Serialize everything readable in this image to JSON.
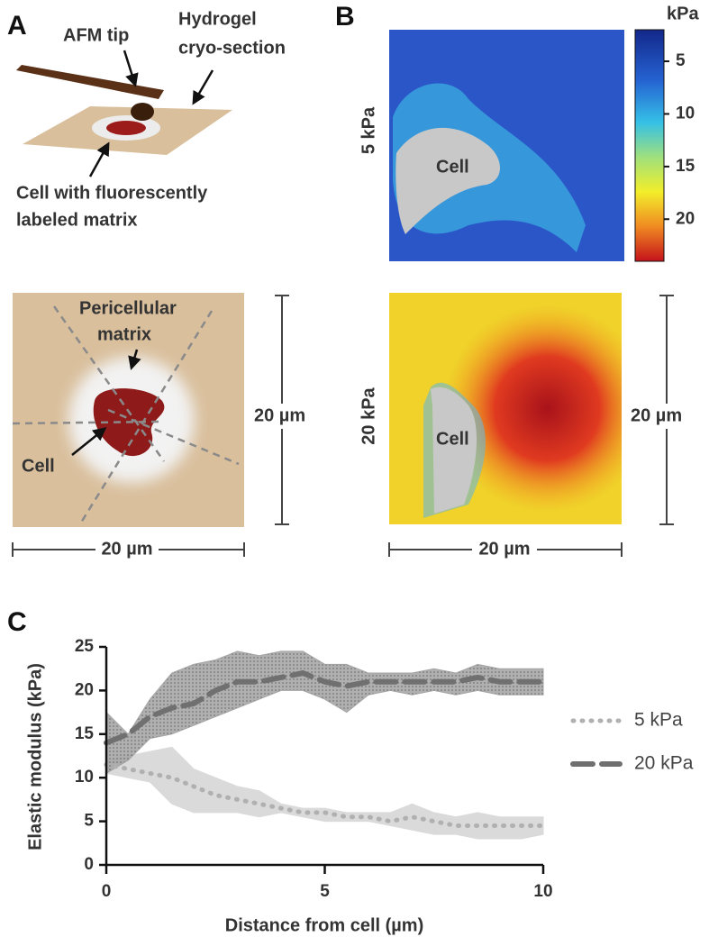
{
  "panel_a": {
    "label": "A",
    "top_annotations": [
      "AFM tip",
      "Hydrogel",
      "cryo-section",
      "Cell with fluorescently",
      "labeled matrix"
    ],
    "diagram_annotations": [
      "Pericellular",
      "matrix",
      "Cell"
    ],
    "scale_x": "20 µm",
    "scale_y": "20 µm"
  },
  "panel_b": {
    "label": "B",
    "row_labels": [
      "5 kPa",
      "20 kPa"
    ],
    "cell_labels": [
      "Cell",
      "Cell"
    ],
    "colorbar": {
      "title": "kPa",
      "clim": [
        2,
        24
      ],
      "ticks": [
        5,
        10,
        15,
        20
      ]
    },
    "scale_x": "20 µm",
    "scale_y": "20 µm"
  },
  "chart_data": {
    "type": "line",
    "panel_label": "C",
    "x_label": "Distance from cell (µm)",
    "y_label": "Elastic modulus (kPa)",
    "x": [
      0,
      0.5,
      1,
      1.5,
      2,
      2.5,
      3,
      3.5,
      4,
      4.5,
      5,
      5.5,
      6,
      6.5,
      7,
      7.5,
      8,
      8.5,
      9,
      9.5,
      10
    ],
    "series": [
      {
        "name": "5 kPa",
        "color": "#b0b0b0",
        "band_color": "#dadada",
        "line_style": "dotted",
        "values": [
          11.5,
          11,
          10.5,
          10,
          9,
          8,
          7.5,
          7,
          6.5,
          6,
          6,
          5.5,
          5.5,
          5,
          5.5,
          5,
          4.5,
          4.5,
          4.5,
          4.5,
          4.5
        ],
        "upper": [
          12,
          12.5,
          13,
          13.5,
          11,
          10,
          9,
          8.5,
          7,
          6.5,
          6.5,
          6,
          6,
          6,
          7,
          6,
          5.5,
          6,
          5.5,
          5.5,
          5.5
        ],
        "lower": [
          10.5,
          10,
          9.5,
          7,
          6,
          6,
          6,
          5.5,
          6,
          5.5,
          5,
          5,
          5,
          4.5,
          4,
          3.5,
          3.5,
          3,
          3,
          3,
          3.5
        ]
      },
      {
        "name": "20 kPa",
        "color": "#707070",
        "band_color": "#9c9c9c",
        "line_style": "dashed",
        "values": [
          14,
          15,
          17,
          18,
          18.5,
          20,
          21,
          21,
          21.5,
          22,
          21,
          20.5,
          21,
          21,
          21,
          21,
          21,
          21.5,
          21,
          21,
          21
        ],
        "upper": [
          17.5,
          15,
          19,
          22,
          23,
          23.5,
          24.5,
          24,
          24.5,
          24.5,
          23,
          23,
          22,
          22,
          22,
          22.5,
          22,
          23,
          22.5,
          22.5,
          22.5
        ],
        "lower": [
          10.5,
          12,
          14.5,
          15,
          16,
          17,
          18,
          19,
          20,
          20,
          19,
          17.5,
          19.5,
          20,
          19.5,
          20,
          19.5,
          20,
          19.5,
          19.5,
          19.5
        ]
      }
    ],
    "xlim": [
      0,
      10
    ],
    "xticks": [
      0,
      5,
      10
    ],
    "ylim": [
      0,
      25
    ],
    "yticks": [
      0,
      5,
      10,
      15,
      20,
      25
    ],
    "legend": "right"
  }
}
